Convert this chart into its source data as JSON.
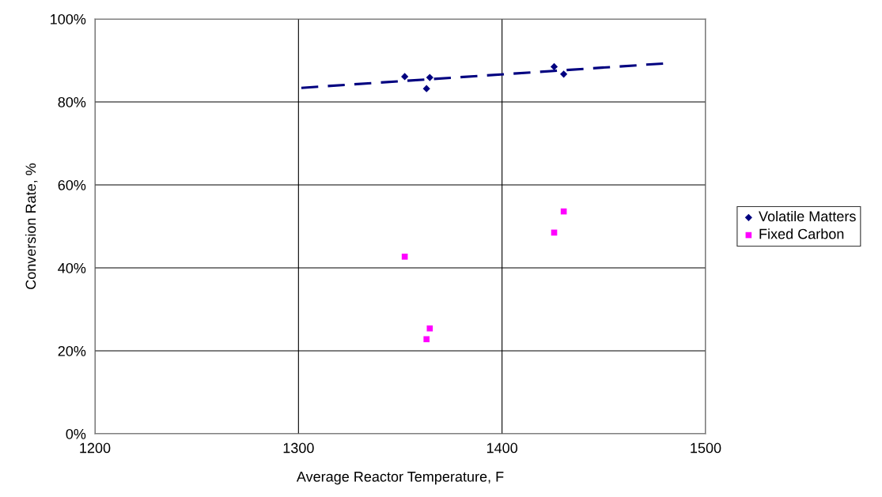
{
  "chart_data": {
    "type": "scatter",
    "xlabel": "Average Reactor Temperature, F",
    "ylabel": "Conversion Rate, %",
    "xlim": [
      1200,
      1500
    ],
    "xticks": [
      1200,
      1300,
      1400,
      1500
    ],
    "ylim": [
      0,
      100
    ],
    "yticks": [
      {
        "value": 0,
        "label": "0%"
      },
      {
        "value": 20,
        "label": "20%"
      },
      {
        "value": 40,
        "label": "40%"
      },
      {
        "value": 60,
        "label": "60%"
      },
      {
        "value": 80,
        "label": "80%"
      },
      {
        "value": 100,
        "label": "100%"
      }
    ],
    "grid": true,
    "legend": "right",
    "series": [
      {
        "name": "Volatile Matters",
        "color": "#000080",
        "marker": "diamond",
        "x": [
          1352.2,
          1364.5,
          1362.9,
          1425.6,
          1430.3
        ],
        "values": [
          86.1,
          85.9,
          83.2,
          88.5,
          86.7
        ]
      },
      {
        "name": "Fixed Carbon",
        "color": "#ff00ff",
        "marker": "square",
        "x": [
          1352.2,
          1364.5,
          1362.9,
          1425.6,
          1430.3
        ],
        "values": [
          42.7,
          25.4,
          22.8,
          48.5,
          53.6
        ]
      },
      {
        "type": "line",
        "color": "#000080",
        "line_style": "dashed",
        "marker": "none",
        "x": [
          1301.4,
          1480.5
        ],
        "values": [
          83.4,
          89.3
        ]
      }
    ]
  }
}
